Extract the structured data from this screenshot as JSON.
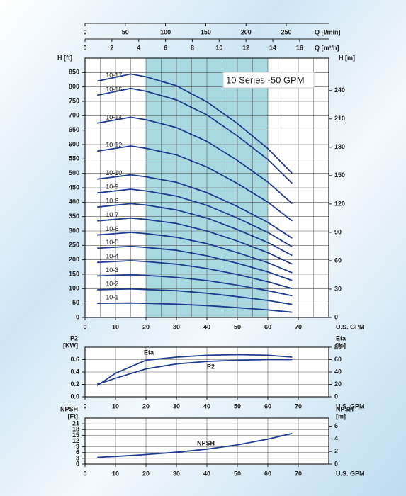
{
  "chart_data": [
    {
      "type": "line",
      "title": "10 Series -50 GPM",
      "xlabel": "U.S. GPM",
      "xlim": [
        0,
        80
      ],
      "xticks": [
        0,
        10,
        20,
        30,
        40,
        50,
        60,
        70
      ],
      "xgrid": [
        5,
        15,
        25,
        35,
        45,
        55,
        65,
        75
      ],
      "ylabel": "H [ft]",
      "ylim": [
        0,
        900
      ],
      "yticks": [
        0,
        50,
        100,
        150,
        200,
        250,
        300,
        350,
        400,
        450,
        500,
        550,
        600,
        650,
        700,
        750,
        800,
        850
      ],
      "y2label": "H [m]",
      "y2lim": [
        0,
        274.3
      ],
      "y2ticks": [
        0,
        30,
        60,
        90,
        120,
        150,
        180,
        210,
        240
      ],
      "top_axes": [
        {
          "label": "Q [l/min]",
          "lim": [
            0,
            302.8
          ],
          "ticks": [
            0,
            50,
            100,
            150,
            200,
            250
          ]
        },
        {
          "label": "Q [m³/h]",
          "lim": [
            0,
            18.17
          ],
          "ticks": [
            0,
            2,
            4,
            6,
            8,
            10,
            12,
            14,
            16
          ]
        }
      ],
      "shaded_range": [
        20,
        60
      ],
      "shade_color": "#a9d9e0",
      "grid": true,
      "x": [
        4,
        15,
        20,
        30,
        40,
        50,
        60,
        68
      ],
      "series": [
        {
          "name": "10-17",
          "color": "#1f3c8f",
          "values": [
            820,
            845,
            835,
            804,
            748,
            673,
            586,
            500
          ]
        },
        {
          "name": "10-16",
          "color": "#1f3c8f",
          "values": [
            771,
            795,
            785,
            755,
            703,
            630,
            548,
            465
          ]
        },
        {
          "name": "10-14",
          "color": "#1f3c8f",
          "values": [
            674,
            695,
            686,
            659,
            611,
            545,
            470,
            395
          ]
        },
        {
          "name": "10-12",
          "color": "#1f3c8f",
          "values": [
            577,
            595,
            587,
            564,
            522,
            465,
            400,
            335
          ]
        },
        {
          "name": "10-10",
          "color": "#1f3c8f",
          "values": [
            480,
            495,
            488,
            469,
            433,
            385,
            330,
            275
          ]
        },
        {
          "name": "10-9",
          "color": "#1f3c8f",
          "values": [
            432,
            445,
            439,
            421,
            389,
            345,
            295,
            245
          ]
        },
        {
          "name": "10-8",
          "color": "#1f3c8f",
          "values": [
            383,
            395,
            390,
            373,
            345,
            305,
            260,
            215
          ]
        },
        {
          "name": "10-7",
          "color": "#1f3c8f",
          "values": [
            335,
            345,
            340,
            326,
            300,
            265,
            225,
            185
          ]
        },
        {
          "name": "10-6",
          "color": "#1f3c8f",
          "values": [
            286,
            295,
            291,
            278,
            256,
            225,
            190,
            155
          ]
        },
        {
          "name": "10-5",
          "color": "#1f3c8f",
          "values": [
            240,
            247,
            243,
            233,
            214,
            188,
            158,
            128
          ]
        },
        {
          "name": "10-4",
          "color": "#1f3c8f",
          "values": [
            191,
            197,
            194,
            185,
            170,
            149,
            124,
            100
          ]
        },
        {
          "name": "10-3",
          "color": "#1f3c8f",
          "values": [
            144,
            148,
            146,
            139,
            128,
            112,
            93,
            75
          ]
        },
        {
          "name": "10-2",
          "color": "#1f3c8f",
          "values": [
            96,
            99,
            97,
            93,
            84,
            72,
            59,
            45
          ]
        },
        {
          "name": "10-1",
          "color": "#1f3c8f",
          "values": [
            49,
            50,
            49,
            46,
            41,
            34,
            26,
            18
          ]
        }
      ]
    },
    {
      "type": "line",
      "xlabel": "U.S. GPM",
      "xlim": [
        0,
        80
      ],
      "xticks": [
        0,
        10,
        20,
        30,
        40,
        50,
        60,
        70
      ],
      "grid": true,
      "ylabel": [
        "P2",
        "[KW]"
      ],
      "ylim": [
        0,
        0.8
      ],
      "yticks": [
        {
          "value": 0,
          "label": "0.0"
        },
        0.2,
        0.4,
        0.6
      ],
      "y2label": [
        "Eta",
        "[%]"
      ],
      "y2lim": [
        0,
        80
      ],
      "y2ticks": [
        0,
        20,
        40,
        60,
        80
      ],
      "x": [
        4,
        10,
        20,
        30,
        40,
        50,
        60,
        68
      ],
      "series": [
        {
          "name": "Eta",
          "color": "#1f3c8f",
          "axis": "y2",
          "values": [
            18,
            38,
            59,
            64,
            67,
            68,
            67,
            64
          ]
        },
        {
          "name": "P2",
          "color": "#1f3c8f",
          "values": [
            0.2,
            0.3,
            0.45,
            0.53,
            0.57,
            0.59,
            0.6,
            0.6
          ]
        }
      ]
    },
    {
      "type": "line",
      "xlabel": "U.S. GPM",
      "xlim": [
        0,
        80
      ],
      "xticks": [
        0,
        10,
        20,
        30,
        40,
        50,
        60,
        70
      ],
      "grid": true,
      "ylabel": [
        "NPSH",
        "[Ft]"
      ],
      "ylim": [
        0,
        24
      ],
      "yticks": [
        0,
        3,
        6,
        9,
        12,
        15,
        18,
        21
      ],
      "y2label": [
        "NPSH",
        "[m]"
      ],
      "y2lim": [
        0,
        7.3
      ],
      "y2ticks": [
        0,
        2,
        4,
        6
      ],
      "x": [
        4,
        10,
        20,
        30,
        40,
        50,
        60,
        68
      ],
      "series": [
        {
          "name": "NPSH",
          "color": "#1f3c8f",
          "values": [
            3.5,
            4,
            5,
            6.2,
            7.8,
            10,
            13,
            16
          ]
        }
      ]
    }
  ]
}
